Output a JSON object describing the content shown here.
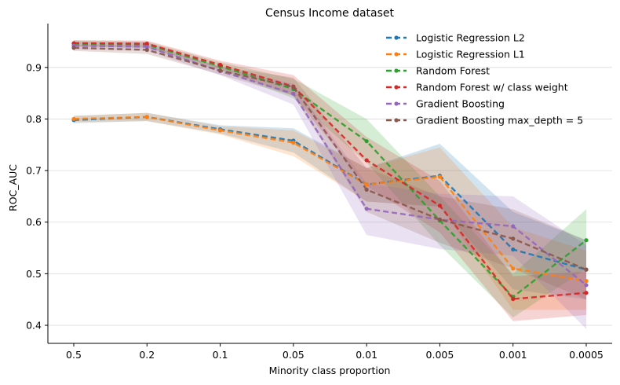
{
  "chart_data": {
    "type": "line",
    "title": "Census Income dataset",
    "xlabel": "Minority class proportion",
    "ylabel": "ROC_AUC",
    "categories": [
      "0.5",
      "0.2",
      "0.1",
      "0.05",
      "0.01",
      "0.005",
      "0.001",
      "0.0005"
    ],
    "ylim": [
      0.365,
      0.985
    ],
    "yticks": [
      0.4,
      0.5,
      0.6,
      0.7,
      0.8,
      0.9
    ],
    "grid": "horizontal",
    "legend_position": "top-right",
    "series": [
      {
        "name": "Logistic Regression L2",
        "color": "#1f77b4",
        "values": [
          0.798,
          0.804,
          0.78,
          0.758,
          0.673,
          0.69,
          0.547,
          0.508
        ],
        "lower": [
          0.792,
          0.796,
          0.772,
          0.735,
          0.64,
          0.63,
          0.47,
          0.45
        ],
        "upper": [
          0.806,
          0.812,
          0.788,
          0.782,
          0.705,
          0.752,
          0.62,
          0.565
        ]
      },
      {
        "name": "Logistic Regression L1",
        "color": "#ff7f0e",
        "values": [
          0.8,
          0.804,
          0.778,
          0.754,
          0.673,
          0.688,
          0.51,
          0.486
        ],
        "lower": [
          0.794,
          0.796,
          0.77,
          0.728,
          0.64,
          0.63,
          0.43,
          0.43
        ],
        "upper": [
          0.806,
          0.812,
          0.786,
          0.778,
          0.705,
          0.745,
          0.59,
          0.545
        ]
      },
      {
        "name": "Random Forest",
        "color": "#2ca02c",
        "values": [
          0.946,
          0.944,
          0.902,
          0.858,
          0.757,
          0.603,
          0.455,
          0.565
        ],
        "lower": [
          0.94,
          0.938,
          0.894,
          0.84,
          0.715,
          0.555,
          0.415,
          0.51
        ],
        "upper": [
          0.952,
          0.95,
          0.91,
          0.878,
          0.8,
          0.65,
          0.5,
          0.625
        ]
      },
      {
        "name": "Random Forest w/ class weight",
        "color": "#d62728",
        "values": [
          0.947,
          0.946,
          0.905,
          0.863,
          0.72,
          0.632,
          0.451,
          0.463
        ],
        "lower": [
          0.941,
          0.94,
          0.897,
          0.845,
          0.67,
          0.58,
          0.408,
          0.42
        ],
        "upper": [
          0.953,
          0.952,
          0.913,
          0.885,
          0.765,
          0.68,
          0.495,
          0.505
        ]
      },
      {
        "name": "Gradient Boosting",
        "color": "#9467bd",
        "values": [
          0.942,
          0.94,
          0.893,
          0.849,
          0.626,
          0.605,
          0.592,
          0.478
        ],
        "lower": [
          0.935,
          0.932,
          0.885,
          0.828,
          0.575,
          0.548,
          0.535,
          0.393
        ],
        "upper": [
          0.95,
          0.948,
          0.901,
          0.868,
          0.675,
          0.655,
          0.65,
          0.555
        ]
      },
      {
        "name": "Gradient Boosting max_depth = 5",
        "color": "#8c564b",
        "values": [
          0.938,
          0.934,
          0.894,
          0.862,
          0.663,
          0.605,
          0.568,
          0.508
        ],
        "lower": [
          0.932,
          0.926,
          0.886,
          0.845,
          0.62,
          0.56,
          0.51,
          0.45
        ],
        "upper": [
          0.944,
          0.942,
          0.902,
          0.88,
          0.705,
          0.65,
          0.625,
          0.565
        ]
      }
    ]
  }
}
